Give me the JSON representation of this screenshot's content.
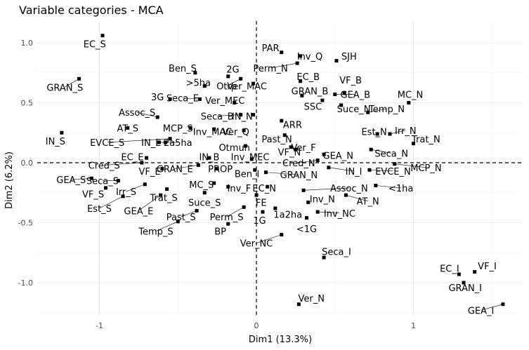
{
  "chart_data": {
    "type": "scatter",
    "title": "Variable categories - MCA",
    "xlabel": "Dim1 (13.3%)",
    "ylabel": "Dim2 (6.2%)",
    "xlim": [
      -1.4,
      1.7
    ],
    "ylim": [
      -1.25,
      1.18
    ],
    "xticks": [
      -1,
      0,
      1
    ],
    "yticks": [
      -1.0,
      -0.5,
      0.0,
      0.5,
      1.0
    ],
    "grid": true,
    "zero_lines": true,
    "points": [
      {
        "label": "EC_S",
        "x": -0.98,
        "y": 1.06,
        "lx": -1.03,
        "ly": 0.99
      },
      {
        "label": "GRAN_S",
        "x": -1.13,
        "y": 0.7,
        "lx": -1.22,
        "ly": 0.63
      },
      {
        "label": "IN_S",
        "x": -1.24,
        "y": 0.25,
        "lx": -1.28,
        "ly": 0.18
      },
      {
        "label": "PAR",
        "x": 0.16,
        "y": 0.92,
        "lx": 0.09,
        "ly": 0.96
      },
      {
        "label": "Inv_Q",
        "x": 0.28,
        "y": 0.89,
        "lx": 0.34,
        "ly": 0.89
      },
      {
        "label": "SJH",
        "x": 0.51,
        "y": 0.85,
        "lx": 0.59,
        "ly": 0.89
      },
      {
        "label": "Perm_N",
        "x": 0.26,
        "y": 0.83,
        "lx": 0.09,
        "ly": 0.79
      },
      {
        "label": "Ben_S",
        "x": -0.39,
        "y": 0.75,
        "lx": -0.47,
        "ly": 0.79
      },
      {
        "label": "2G",
        "x": -0.18,
        "y": 0.72,
        "lx": -0.15,
        "ly": 0.78
      },
      {
        "label": ">5ha",
        "x": -0.33,
        "y": 0.64,
        "lx": -0.37,
        "ly": 0.67
      },
      {
        "label": "Otrp",
        "x": -0.1,
        "y": 0.7,
        "lx": -0.19,
        "ly": 0.64
      },
      {
        "label": "Ver_MAC",
        "x": -0.02,
        "y": 0.66,
        "lx": -0.06,
        "ly": 0.64
      },
      {
        "label": "EC_B",
        "x": 0.28,
        "y": 0.68,
        "lx": 0.33,
        "ly": 0.72
      },
      {
        "label": "VF_B",
        "x": 0.56,
        "y": 0.58,
        "lx": 0.6,
        "ly": 0.69
      },
      {
        "label": "GRAN_B",
        "x": 0.29,
        "y": 0.56,
        "lx": 0.34,
        "ly": 0.6
      },
      {
        "label": "GEA_B",
        "x": 0.5,
        "y": 0.57,
        "lx": 0.63,
        "ly": 0.57
      },
      {
        "label": "MC_N",
        "x": 0.97,
        "y": 0.5,
        "lx": 0.98,
        "ly": 0.57
      },
      {
        "label": "3G",
        "x": -0.55,
        "y": 0.53,
        "lx": -0.63,
        "ly": 0.55
      },
      {
        "label": "Seca_E",
        "x": -0.36,
        "y": 0.53,
        "lx": -0.47,
        "ly": 0.54
      },
      {
        "label": "Ver_MEC",
        "x": -0.14,
        "y": 0.5,
        "lx": -0.2,
        "ly": 0.52
      },
      {
        "label": "SSC",
        "x": 0.42,
        "y": 0.52,
        "lx": 0.36,
        "ly": 0.47
      },
      {
        "label": "Suce_N",
        "x": 0.54,
        "y": 0.48,
        "lx": 0.62,
        "ly": 0.45
      },
      {
        "label": "Temp_N",
        "x": 0.71,
        "y": 0.42,
        "lx": 0.83,
        "ly": 0.45
      },
      {
        "label": "Assoc_S",
        "x": -0.63,
        "y": 0.38,
        "lx": -0.76,
        "ly": 0.42
      },
      {
        "label": "Seca_B",
        "x": -0.1,
        "y": 0.4,
        "lx": -0.25,
        "ly": 0.39
      },
      {
        "label": "IN_N",
        "x": -0.02,
        "y": 0.4,
        "lx": -0.09,
        "ly": 0.39
      },
      {
        "label": "MCP_S",
        "x": -0.42,
        "y": 0.29,
        "lx": -0.5,
        "ly": 0.29
      },
      {
        "label": "AT_S",
        "x": -0.82,
        "y": 0.29,
        "lx": -0.82,
        "ly": 0.29
      },
      {
        "label": "Inv_MAC",
        "x": -0.27,
        "y": 0.28,
        "lx": -0.28,
        "ly": 0.26
      },
      {
        "label": "Ver_Q",
        "x": -0.08,
        "y": 0.27,
        "lx": -0.13,
        "ly": 0.26
      },
      {
        "label": "ARR",
        "x": 0.16,
        "y": 0.35,
        "lx": 0.23,
        "ly": 0.32
      },
      {
        "label": "Est_N",
        "x": 0.77,
        "y": 0.24,
        "lx": 0.75,
        "ly": 0.26
      },
      {
        "label": "Irr_N",
        "x": 0.85,
        "y": 0.24,
        "lx": 0.95,
        "ly": 0.27
      },
      {
        "label": "Past_N",
        "x": 0.18,
        "y": 0.23,
        "lx": 0.13,
        "ly": 0.2
      },
      {
        "label": "Trat_N",
        "x": 1.0,
        "y": 0.16,
        "lx": 1.08,
        "ly": 0.2
      },
      {
        "label": "EVCE_S",
        "x": -0.55,
        "y": 0.2,
        "lx": -0.95,
        "ly": 0.17
      },
      {
        "label": "IN_E",
        "x": -0.58,
        "y": 0.17,
        "lx": -0.67,
        "ly": 0.17
      },
      {
        "label": "2a5ha",
        "x": -0.62,
        "y": 0.17,
        "lx": -0.5,
        "ly": 0.17
      },
      {
        "label": "Otmun",
        "x": -0.07,
        "y": 0.14,
        "lx": -0.14,
        "ly": 0.13
      },
      {
        "label": "Ver_F",
        "x": 0.22,
        "y": 0.13,
        "lx": 0.3,
        "ly": 0.13
      },
      {
        "label": "Seca_N",
        "x": 0.73,
        "y": 0.11,
        "lx": 0.86,
        "ly": 0.08
      },
      {
        "label": "VF_N",
        "x": 0.25,
        "y": 0.11,
        "lx": 0.21,
        "ly": 0.09
      },
      {
        "label": "GEA_N",
        "x": 0.43,
        "y": 0.07,
        "lx": 0.52,
        "ly": 0.06
      },
      {
        "label": "EC_E",
        "x": -0.7,
        "y": 0.04,
        "lx": -0.79,
        "ly": 0.05
      },
      {
        "label": "IN_B",
        "x": -0.3,
        "y": 0.04,
        "lx": -0.3,
        "ly": 0.05
      },
      {
        "label": "Inv_MEC",
        "x": -0.03,
        "y": 0.03,
        "lx": -0.04,
        "ly": 0.05
      },
      {
        "label": "Cred_N",
        "x": 0.39,
        "y": 0.02,
        "lx": 0.27,
        "ly": 0.0
      },
      {
        "label": "Cred_S",
        "x": -0.73,
        "y": 0.0,
        "lx": -0.97,
        "ly": -0.02
      },
      {
        "label": "MCP_N",
        "x": 0.88,
        "y": -0.01,
        "lx": 1.08,
        "ly": -0.04
      },
      {
        "label": "GRAN_E",
        "x": -0.37,
        "y": -0.02,
        "lx": -0.52,
        "ly": -0.05
      },
      {
        "label": "PROP",
        "x": -0.25,
        "y": -0.05,
        "lx": -0.23,
        "ly": -0.05
      },
      {
        "label": "IN_I",
        "x": 0.46,
        "y": -0.04,
        "lx": 0.62,
        "ly": -0.07
      },
      {
        "label": "EVCE_N",
        "x": 0.72,
        "y": -0.06,
        "lx": 0.87,
        "ly": -0.07
      },
      {
        "label": "VF_E",
        "x": -0.6,
        "y": -0.05,
        "lx": -0.68,
        "ly": -0.07
      },
      {
        "label": "Ben_I",
        "x": -0.01,
        "y": -0.06,
        "lx": -0.06,
        "ly": -0.09
      },
      {
        "label": "GRAN_N",
        "x": 0.06,
        "y": -0.08,
        "lx": 0.27,
        "ly": -0.1
      },
      {
        "label": "GEA_S",
        "x": -1.05,
        "y": -0.13,
        "lx": -1.18,
        "ly": -0.14
      },
      {
        "label": "Seca_S",
        "x": -0.88,
        "y": -0.15,
        "lx": -0.98,
        "ly": -0.15
      },
      {
        "label": "MC_S",
        "x": -0.27,
        "y": -0.17,
        "lx": -0.35,
        "ly": -0.18
      },
      {
        "label": "Assoc_N",
        "x": 0.3,
        "y": -0.23,
        "lx": 0.59,
        "ly": -0.21
      },
      {
        "label": "<1ha",
        "x": 0.76,
        "y": -0.19,
        "lx": 0.92,
        "ly": -0.21
      },
      {
        "label": "Irr_S",
        "x": -0.71,
        "y": -0.18,
        "lx": -0.83,
        "ly": -0.24
      },
      {
        "label": "Inv_F",
        "x": -0.18,
        "y": -0.2,
        "lx": -0.11,
        "ly": -0.21
      },
      {
        "label": "EC_N",
        "x": 0.07,
        "y": -0.2,
        "lx": 0.05,
        "ly": -0.21
      },
      {
        "label": "VF_S",
        "x": -0.96,
        "y": -0.21,
        "lx": -1.04,
        "ly": -0.26
      },
      {
        "label": "Trat_S",
        "x": -0.57,
        "y": -0.22,
        "lx": -0.59,
        "ly": -0.29
      },
      {
        "label": "AT_N",
        "x": 0.57,
        "y": -0.27,
        "lx": 0.71,
        "ly": -0.32
      },
      {
        "label": "Inv_N",
        "x": 0.33,
        "y": -0.33,
        "lx": 0.42,
        "ly": -0.3
      },
      {
        "label": "Suce_S",
        "x": -0.33,
        "y": -0.25,
        "lx": -0.33,
        "ly": -0.33
      },
      {
        "label": "Est_S",
        "x": -0.85,
        "y": -0.28,
        "lx": -1.0,
        "ly": -0.38
      },
      {
        "label": "FE",
        "x": 0.0,
        "y": -0.27,
        "lx": 0.03,
        "ly": -0.33
      },
      {
        "label": "GEA_E",
        "x": -0.61,
        "y": -0.27,
        "lx": -0.75,
        "ly": -0.4
      },
      {
        "label": "1a2ha",
        "x": 0.12,
        "y": -0.38,
        "lx": 0.2,
        "ly": -0.43
      },
      {
        "label": "Inv_NC",
        "x": 0.39,
        "y": -0.41,
        "lx": 0.53,
        "ly": -0.42
      },
      {
        "label": "Past_S",
        "x": -0.38,
        "y": -0.4,
        "lx": -0.48,
        "ly": -0.45
      },
      {
        "label": "Perm_S",
        "x": -0.08,
        "y": -0.37,
        "lx": -0.19,
        "ly": -0.45
      },
      {
        "label": "1G",
        "x": 0.04,
        "y": -0.41,
        "lx": 0.02,
        "ly": -0.48
      },
      {
        "label": "<1G",
        "x": 0.32,
        "y": -0.46,
        "lx": 0.32,
        "ly": -0.55
      },
      {
        "label": "Temp_S",
        "x": -0.5,
        "y": -0.49,
        "lx": -0.64,
        "ly": -0.57
      },
      {
        "label": "BP",
        "x": -0.18,
        "y": -0.51,
        "lx": -0.23,
        "ly": -0.57
      },
      {
        "label": "Ver_NC",
        "x": 0.16,
        "y": -0.6,
        "lx": 0.0,
        "ly": -0.67
      },
      {
        "label": "Seca_I",
        "x": 0.43,
        "y": -0.79,
        "lx": 0.51,
        "ly": -0.74
      },
      {
        "label": "VF_I",
        "x": 1.39,
        "y": -0.91,
        "lx": 1.47,
        "ly": -0.86
      },
      {
        "label": "EC_I",
        "x": 1.29,
        "y": -0.93,
        "lx": 1.23,
        "ly": -0.88
      },
      {
        "label": "GRAN_I",
        "x": 1.32,
        "y": -1.0,
        "lx": 1.33,
        "ly": -1.04
      },
      {
        "label": "GEA_I",
        "x": 1.57,
        "y": -1.18,
        "lx": 1.43,
        "ly": -1.23
      },
      {
        "label": "Ver_N",
        "x": 0.27,
        "y": -1.18,
        "lx": 0.35,
        "ly": -1.13
      }
    ]
  }
}
